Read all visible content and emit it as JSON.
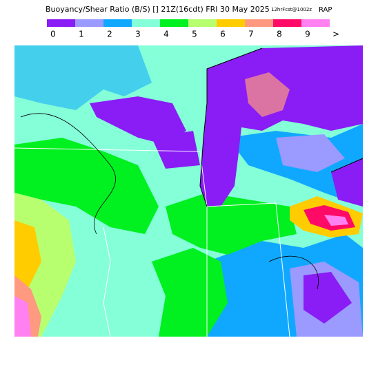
{
  "header": {
    "title": "Buoyancy/Shear Ratio (B/S) [] 21Z(16cdt) FRI 30 May 2025",
    "forecast": "12hrFcst@1002z",
    "model": "RAP"
  },
  "legend": {
    "items": [
      {
        "label": "0",
        "color": "#8a1cf5"
      },
      {
        "label": "1",
        "color": "#9a9aff"
      },
      {
        "label": "2",
        "color": "#10a8ff"
      },
      {
        "label": "3",
        "color": "#84ffd8"
      },
      {
        "label": "4",
        "color": "#00f020"
      },
      {
        "label": "5",
        "color": "#b8ff70"
      },
      {
        "label": "6",
        "color": "#ffcc00"
      },
      {
        "label": "7",
        "color": "#ff9a80"
      },
      {
        "label": "8",
        "color": "#ff0a66"
      },
      {
        "label": "9",
        "color": "#ff80f0"
      }
    ],
    "overflow": ">"
  }
}
